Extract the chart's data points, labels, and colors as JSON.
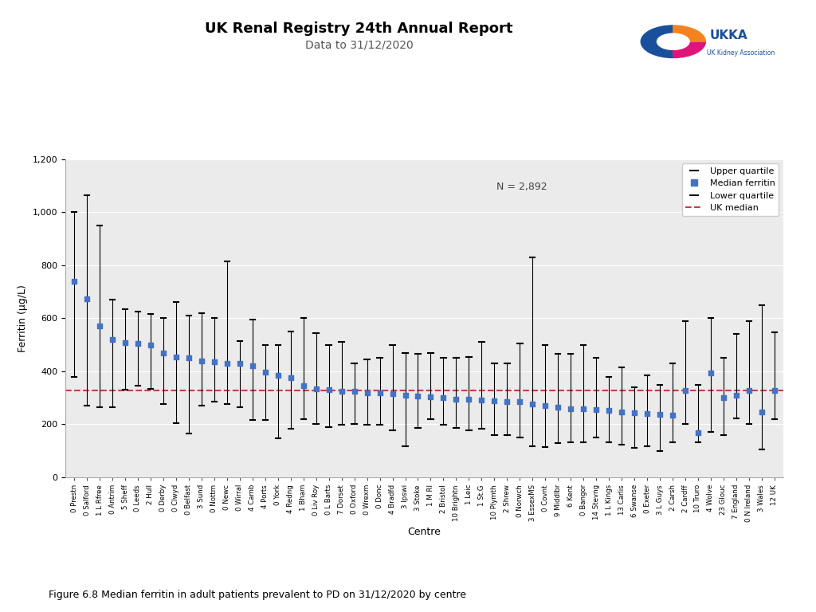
{
  "title": "UK Renal Registry 24th Annual Report",
  "subtitle": "Data to 31/12/2020",
  "ylabel": "Ferritin (μg/L)",
  "xlabel": "Centre",
  "n_label": "N = 2,892",
  "uk_median": 328,
  "ylim": [
    0,
    1200
  ],
  "yticks": [
    0,
    200,
    400,
    600,
    800,
    1000,
    1200
  ],
  "figure_caption": "Figure 6.8 Median ferritin in adult patients prevalent to PD on 31/12/2020 by centre",
  "background_color": "#ebebeb",
  "centers": [
    "0 Prestn",
    "0 Salford",
    "1 L Rfree",
    "0 Antrim",
    "5 Sheff",
    "0 Leeds",
    "2 Hull",
    "0 Derby",
    "0 Clwyd",
    "0 Belfast",
    "3 Sund",
    "0 Nottm",
    "0 Newc",
    "0 Wirral",
    "4 Camb",
    "4 Ports",
    "0 York",
    "4 Redng",
    "1 Bham",
    "0 Liv Roy",
    "0 L Barts",
    "7 Dorset",
    "0 Oxford",
    "0 Wrexm",
    "0 Donc",
    "4 Bradfd",
    "3 Ipswi",
    "3 Stoke",
    "1 M RI",
    "2 Bristol",
    "10 Brightn",
    "1 Leic",
    "1 St.G",
    "10 Plymth",
    "2 Shrew",
    "0 Norwch",
    "3 EssexMS",
    "0 Covnt",
    "9 Middlbr",
    "6 Kent",
    "0 Bangor",
    "14 Stevng",
    "1 L Kings",
    "13 Carlis",
    "6 Swanse",
    "0 Exeter",
    "3 L Guys",
    "2 Carsh",
    "2 Cardff",
    "10 Truro",
    "4 Wolve",
    "23 Glouc",
    "7 England",
    "0 N Ireland",
    "3 Wales",
    "12 UK"
  ],
  "medians": [
    738,
    672,
    570,
    520,
    508,
    505,
    500,
    468,
    455,
    450,
    438,
    435,
    430,
    430,
    420,
    398,
    385,
    375,
    345,
    335,
    330,
    325,
    325,
    320,
    318,
    315,
    310,
    308,
    305,
    300,
    295,
    295,
    292,
    288,
    285,
    285,
    278,
    272,
    265,
    260,
    260,
    255,
    252,
    248,
    245,
    242,
    238,
    235,
    328,
    168,
    395,
    300,
    310,
    328,
    248,
    328
  ],
  "upper_quartiles": [
    1000,
    1065,
    950,
    670,
    635,
    625,
    615,
    600,
    660,
    610,
    620,
    600,
    815,
    515,
    595,
    500,
    500,
    550,
    600,
    545,
    500,
    510,
    430,
    445,
    450,
    500,
    470,
    465,
    470,
    450,
    450,
    455,
    510,
    430,
    430,
    505,
    830,
    500,
    465,
    465,
    500,
    450,
    380,
    415,
    340,
    385,
    350,
    430,
    590,
    350,
    600,
    450,
    540,
    590,
    650,
    548
  ],
  "lower_quartiles": [
    380,
    270,
    265,
    265,
    330,
    345,
    335,
    278,
    205,
    165,
    272,
    285,
    278,
    265,
    215,
    215,
    148,
    182,
    218,
    200,
    188,
    198,
    200,
    198,
    198,
    178,
    118,
    185,
    218,
    198,
    185,
    178,
    182,
    160,
    158,
    150,
    118,
    115,
    128,
    132,
    132,
    150,
    132,
    122,
    112,
    118,
    98,
    132,
    200,
    132,
    172,
    158,
    222,
    202,
    105,
    218
  ]
}
